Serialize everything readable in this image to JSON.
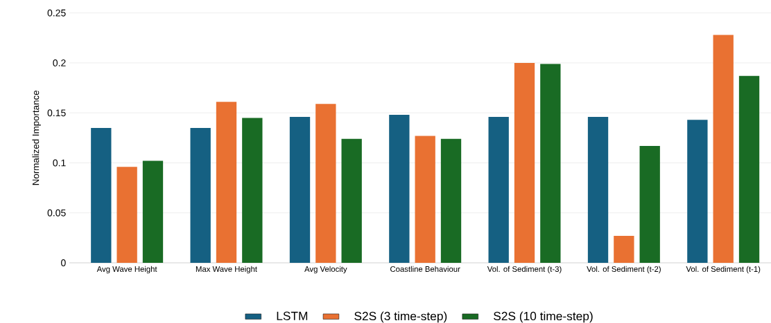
{
  "chart_data": {
    "type": "bar",
    "ylabel": "Normalized Importance",
    "categories": [
      "Avg Wave Height",
      "Max Wave Height",
      "Avg Velocity",
      "Coastline Behaviour",
      "Vol. of Sediment (t-3)",
      "Vol. of Sediment (t-2)",
      "Vol. of Sediment (t-1)"
    ],
    "series": [
      {
        "name": "LSTM",
        "color": "#156082",
        "values": [
          0.135,
          0.135,
          0.146,
          0.148,
          0.146,
          0.146,
          0.143
        ]
      },
      {
        "name": "S2S (3 time-step)",
        "color": "#e97132",
        "values": [
          0.096,
          0.161,
          0.159,
          0.127,
          0.2,
          0.027,
          0.228
        ]
      },
      {
        "name": "S2S (10 time-step)",
        "color": "#196b24",
        "values": [
          0.102,
          0.145,
          0.124,
          0.124,
          0.199,
          0.117,
          0.187
        ]
      }
    ],
    "ylim": [
      0,
      0.25
    ],
    "yticks": [
      0,
      0.05,
      0.1,
      0.15,
      0.2,
      0.25
    ],
    "grid": "y",
    "legend": "bottom"
  }
}
